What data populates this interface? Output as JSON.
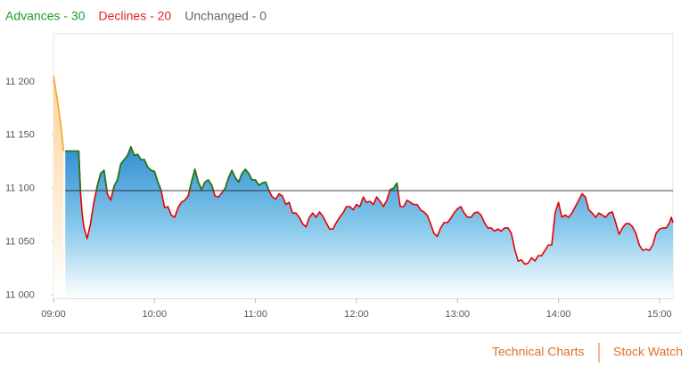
{
  "chart_data": {
    "type": "line",
    "legend": [
      {
        "label": "Advances - 30",
        "color": "#1f9a27"
      },
      {
        "label": "Declines - 20",
        "color": "#e0242b"
      },
      {
        "label": "Unchanged - 0",
        "color": "#666666"
      }
    ],
    "xlim": [
      540,
      908
    ],
    "xticks": [
      {
        "value": 540,
        "label": "09:00"
      },
      {
        "value": 600,
        "label": "10:00"
      },
      {
        "value": 660,
        "label": "11:00"
      },
      {
        "value": 720,
        "label": "12:00"
      },
      {
        "value": 780,
        "label": "13:00"
      },
      {
        "value": 840,
        "label": "14:00"
      },
      {
        "value": 900,
        "label": "15:00"
      }
    ],
    "ylim": [
      10997,
      11245
    ],
    "yticks": [
      {
        "value": 11000,
        "label": "11 000"
      },
      {
        "value": 11050,
        "label": "11 050"
      },
      {
        "value": 11100,
        "label": "11 100"
      },
      {
        "value": 11150,
        "label": "11 150"
      },
      {
        "value": 11200,
        "label": "11 200"
      }
    ],
    "reference": 11098,
    "series": [
      {
        "color": "#f5a623",
        "x": [
          540,
          541,
          542,
          543,
          544,
          545,
          546
        ],
        "values": [
          11206,
          11196,
          11186,
          11176,
          11164,
          11150,
          11135
        ]
      },
      {
        "color": "#e60000",
        "color_above": "#1e7b1e",
        "x": [
          547,
          549,
          552,
          555,
          556,
          557,
          558,
          560,
          562,
          564,
          566,
          568,
          570,
          572,
          574,
          576,
          578,
          580,
          582,
          584,
          586,
          588,
          590,
          592,
          594,
          596,
          598,
          600,
          602,
          604,
          606,
          608,
          610,
          612,
          614,
          616,
          618,
          620,
          622,
          624,
          626,
          628,
          630,
          632,
          634,
          636,
          638,
          640,
          642,
          644,
          646,
          648,
          650,
          652,
          654,
          656,
          658,
          660,
          662,
          664,
          666,
          668,
          670,
          672,
          674,
          676,
          678,
          680,
          682,
          684,
          686,
          688,
          690,
          692,
          694,
          696,
          698,
          700,
          702,
          704,
          706,
          708,
          710,
          712,
          714,
          716,
          718,
          720,
          722,
          724,
          726,
          728,
          730,
          732,
          734,
          736,
          738,
          740,
          742,
          744,
          746,
          748,
          750,
          752,
          754,
          756,
          758,
          760,
          762,
          764,
          766,
          768,
          770,
          772,
          774,
          776,
          778,
          780,
          782,
          784,
          786,
          788,
          790,
          792,
          794,
          796,
          798,
          800,
          802,
          804,
          806,
          808,
          810,
          812,
          814,
          816,
          818,
          820,
          822,
          824,
          826,
          828,
          830,
          832,
          834,
          836,
          838,
          840,
          842,
          844,
          846,
          848,
          850,
          852,
          854,
          856,
          858,
          860,
          862,
          864,
          866,
          868,
          870,
          872,
          874,
          876,
          878,
          880,
          882,
          884,
          886,
          888,
          890,
          892,
          894,
          896,
          898,
          900,
          902,
          904,
          906,
          907,
          908
        ],
        "values": [
          11135,
          11135,
          11135,
          11135,
          11098,
          11077,
          11064,
          11053,
          11067,
          11087,
          11102,
          11114,
          11117,
          11095,
          11089,
          11102,
          11108,
          11123,
          11127,
          11131,
          11139,
          11131,
          11132,
          11127,
          11127,
          11120,
          11117,
          11116,
          11106,
          11098,
          11082,
          11083,
          11075,
          11073,
          11082,
          11087,
          11089,
          11093,
          11106,
          11118,
          11106,
          11099,
          11106,
          11108,
          11103,
          11093,
          11092,
          11096,
          11100,
          11110,
          11117,
          11110,
          11106,
          11114,
          11118,
          11114,
          11108,
          11108,
          11103,
          11105,
          11106,
          11098,
          11092,
          11090,
          11095,
          11093,
          11085,
          11087,
          11077,
          11077,
          11073,
          11067,
          11064,
          11073,
          11077,
          11073,
          11078,
          11074,
          11068,
          11062,
          11062,
          11068,
          11073,
          11077,
          11083,
          11083,
          11080,
          11085,
          11083,
          11092,
          11087,
          11088,
          11085,
          11092,
          11088,
          11083,
          11089,
          11099,
          11100,
          11105,
          11083,
          11083,
          11089,
          11087,
          11085,
          11085,
          11080,
          11078,
          11075,
          11067,
          11058,
          11055,
          11063,
          11068,
          11068,
          11072,
          11077,
          11081,
          11083,
          11077,
          11073,
          11073,
          11077,
          11078,
          11075,
          11068,
          11063,
          11063,
          11060,
          11062,
          11060,
          11063,
          11063,
          11058,
          11043,
          11032,
          11033,
          11029,
          11030,
          11035,
          11032,
          11037,
          11037,
          11042,
          11047,
          11047,
          11077,
          11087,
          11073,
          11075,
          11073,
          11077,
          11083,
          11089,
          11095,
          11092,
          11080,
          11077,
          11073,
          11077,
          11075,
          11073,
          11077,
          11078,
          11068,
          11057,
          11063,
          11067,
          11067,
          11064,
          11058,
          11047,
          11042,
          11043,
          11042,
          11047,
          11058,
          11062,
          11063,
          11063,
          11068,
          11073,
          11068
        ]
      }
    ]
  },
  "footer_links": [
    "Technical Charts",
    "Stock Watch"
  ]
}
